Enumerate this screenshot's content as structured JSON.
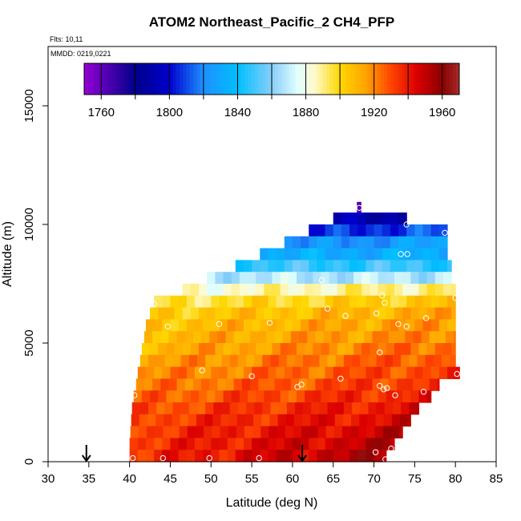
{
  "chart_data": {
    "type": "heatmap",
    "title": "ATOM2 Northeast_Pacific_2 CH4_PFP",
    "flights_note": "Flts: 10,11",
    "dates_note": "MMDD: 0219,0221",
    "xlabel": "Latitude (deg N)",
    "ylabel": "Altitude (m)",
    "xlim": [
      30,
      85
    ],
    "ylim": [
      0,
      17500
    ],
    "x_ticks": [
      30,
      35,
      40,
      45,
      50,
      55,
      60,
      65,
      70,
      75,
      80,
      85
    ],
    "y_ticks": [
      0,
      5000,
      10000,
      15000
    ],
    "colorbar": {
      "range": [
        1750,
        1970
      ],
      "tick_values": [
        1760,
        1800,
        1840,
        1880,
        1920,
        1960
      ],
      "boundaries": [
        1760,
        1780,
        1800,
        1820,
        1840,
        1860,
        1880,
        1900,
        1920,
        1940,
        1960
      ],
      "colors": [
        "#9400D3",
        "#00008B",
        "#0000CD",
        "#1E90FF",
        "#00BFFF",
        "#87CEFA",
        "#E0FFFF",
        "#FFFACD",
        "#FFD700",
        "#FFA500",
        "#FF4500",
        "#DC0000",
        "#8B0000",
        "#A52A2A"
      ],
      "color_stops": [
        1750,
        1780,
        1800,
        1820,
        1840,
        1860,
        1875,
        1885,
        1900,
        1915,
        1930,
        1945,
        1960,
        1970
      ]
    },
    "arrows": [
      {
        "lat": 34.7,
        "alt": 0
      },
      {
        "lat": 61.2,
        "alt": 0
      }
    ],
    "field_rows": [
      {
        "alt_min": 10500,
        "alt_max": 10950,
        "lat_min": 67.9,
        "lat_max": 68.4,
        "base": 1755,
        "slope": 0
      },
      {
        "alt_min": 10000,
        "alt_max": 10500,
        "lat_min": 65.0,
        "lat_max": 74.0,
        "base": 1790,
        "slope": 0
      },
      {
        "alt_min": 9500,
        "alt_max": 10000,
        "lat_min": 62.0,
        "lat_max": 79.0,
        "base": 1800,
        "slope": 0.5
      },
      {
        "alt_min": 9000,
        "alt_max": 9500,
        "lat_min": 59.0,
        "lat_max": 79.0,
        "base": 1818,
        "slope": 0.4
      },
      {
        "alt_min": 8500,
        "alt_max": 9000,
        "lat_min": 56.0,
        "lat_max": 79.0,
        "base": 1832,
        "slope": 0
      },
      {
        "alt_min": 8000,
        "alt_max": 8500,
        "lat_min": 53.0,
        "lat_max": 79.5,
        "base": 1848,
        "slope": 0
      },
      {
        "alt_min": 7500,
        "alt_max": 8000,
        "lat_min": 49.5,
        "lat_max": 79.5,
        "base": 1868,
        "slope": 0
      },
      {
        "alt_min": 7000,
        "alt_max": 7500,
        "lat_min": 46.5,
        "lat_max": 80.0,
        "base": 1885,
        "slope": 0.3
      },
      {
        "alt_min": 6500,
        "alt_max": 7000,
        "lat_min": 43.0,
        "lat_max": 80.0,
        "base": 1898,
        "slope": 0.3
      },
      {
        "alt_min": 6000,
        "alt_max": 6500,
        "lat_min": 42.5,
        "lat_max": 80.0,
        "base": 1906,
        "slope": 0.3
      },
      {
        "alt_min": 5500,
        "alt_max": 6000,
        "lat_min": 42.0,
        "lat_max": 80.0,
        "base": 1910,
        "slope": 0.3
      },
      {
        "alt_min": 5000,
        "alt_max": 5500,
        "lat_min": 41.8,
        "lat_max": 80.0,
        "base": 1913,
        "slope": 0.3
      },
      {
        "alt_min": 4500,
        "alt_max": 5000,
        "lat_min": 41.5,
        "lat_max": 80.0,
        "base": 1916,
        "slope": 0.4
      },
      {
        "alt_min": 4000,
        "alt_max": 4500,
        "lat_min": 41.3,
        "lat_max": 80.0,
        "base": 1920,
        "slope": 0.4
      },
      {
        "alt_min": 3500,
        "alt_max": 4000,
        "lat_min": 41.0,
        "lat_max": 80.5,
        "base": 1923,
        "slope": 0.4
      },
      {
        "alt_min": 3000,
        "alt_max": 3500,
        "lat_min": 40.8,
        "lat_max": 78.0,
        "base": 1926,
        "slope": 0.4
      },
      {
        "alt_min": 2500,
        "alt_max": 3000,
        "lat_min": 40.5,
        "lat_max": 77.0,
        "base": 1930,
        "slope": 0.4
      },
      {
        "alt_min": 2000,
        "alt_max": 2500,
        "lat_min": 40.3,
        "lat_max": 75.5,
        "base": 1934,
        "slope": 0.4
      },
      {
        "alt_min": 1500,
        "alt_max": 2000,
        "lat_min": 40.2,
        "lat_max": 74.5,
        "base": 1937,
        "slope": 0.4
      },
      {
        "alt_min": 1000,
        "alt_max": 1500,
        "lat_min": 40.1,
        "lat_max": 73.5,
        "base": 1940,
        "slope": 0.5
      },
      {
        "alt_min": 500,
        "alt_max": 1000,
        "lat_min": 40.0,
        "lat_max": 72.5,
        "base": 1942,
        "slope": 0.6
      },
      {
        "alt_min": 0,
        "alt_max": 500,
        "lat_min": 40.0,
        "lat_max": 71.5,
        "base": 1944,
        "slope": 0.7
      }
    ],
    "sample_points": [
      {
        "lat": 68.2,
        "alt": 10700
      },
      {
        "lat": 74.0,
        "alt": 10000
      },
      {
        "lat": 78.7,
        "alt": 9650
      },
      {
        "lat": 73.3,
        "alt": 8750
      },
      {
        "lat": 74.1,
        "alt": 8750
      },
      {
        "lat": 63.6,
        "alt": 7650
      },
      {
        "lat": 43.0,
        "alt": 6650
      },
      {
        "lat": 71.0,
        "alt": 7000
      },
      {
        "lat": 71.3,
        "alt": 6700
      },
      {
        "lat": 80.0,
        "alt": 6900
      },
      {
        "lat": 64.3,
        "alt": 6450
      },
      {
        "lat": 70.3,
        "alt": 6250
      },
      {
        "lat": 66.5,
        "alt": 6150
      },
      {
        "lat": 76.4,
        "alt": 6050
      },
      {
        "lat": 44.7,
        "alt": 5700
      },
      {
        "lat": 51.0,
        "alt": 5800
      },
      {
        "lat": 57.2,
        "alt": 5850
      },
      {
        "lat": 73.0,
        "alt": 5800
      },
      {
        "lat": 74.0,
        "alt": 5700
      },
      {
        "lat": 70.7,
        "alt": 4600
      },
      {
        "lat": 48.9,
        "alt": 3850
      },
      {
        "lat": 55.0,
        "alt": 3600
      },
      {
        "lat": 65.9,
        "alt": 3500
      },
      {
        "lat": 80.2,
        "alt": 3700
      },
      {
        "lat": 60.6,
        "alt": 3150
      },
      {
        "lat": 61.1,
        "alt": 3250
      },
      {
        "lat": 70.7,
        "alt": 3200
      },
      {
        "lat": 71.2,
        "alt": 3050
      },
      {
        "lat": 71.6,
        "alt": 3100
      },
      {
        "lat": 76.1,
        "alt": 2950
      },
      {
        "lat": 40.6,
        "alt": 2800
      },
      {
        "lat": 72.6,
        "alt": 2800
      },
      {
        "lat": 70.2,
        "alt": 400
      },
      {
        "lat": 72.1,
        "alt": 550
      },
      {
        "lat": 40.4,
        "alt": 150
      },
      {
        "lat": 44.1,
        "alt": 150
      },
      {
        "lat": 49.8,
        "alt": 150
      },
      {
        "lat": 55.9,
        "alt": 150
      },
      {
        "lat": 71.4,
        "alt": 100
      }
    ]
  }
}
